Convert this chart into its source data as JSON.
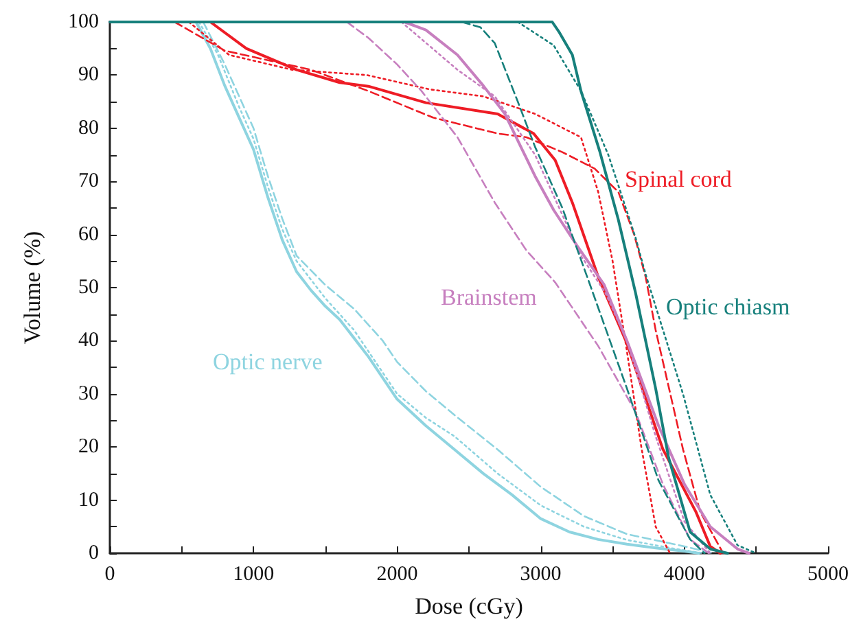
{
  "chart_data": {
    "type": "line",
    "xlabel": "Dose (cGy)",
    "ylabel": "Volume (%)",
    "xlim": [
      0,
      5000
    ],
    "ylim": [
      0,
      100
    ],
    "xticks": [
      0,
      {
        "value": 500,
        "label": null
      },
      1000,
      {
        "value": 1500,
        "label": null
      },
      2000,
      {
        "value": 2500,
        "label": null
      },
      3000,
      {
        "value": 3500,
        "label": null
      },
      4000,
      {
        "value": 4500,
        "label": null
      },
      5000
    ],
    "yticks": [
      0,
      {
        "value": 5,
        "label": null
      },
      10,
      {
        "value": 15,
        "label": null
      },
      20,
      {
        "value": 25,
        "label": null
      },
      30,
      {
        "value": 35,
        "label": null
      },
      40,
      {
        "value": 45,
        "label": null
      },
      50,
      {
        "value": 55,
        "label": null
      },
      60,
      {
        "value": 65,
        "label": null
      },
      70,
      {
        "value": 75,
        "label": null
      },
      80,
      {
        "value": 85,
        "label": null
      },
      90,
      {
        "value": 95,
        "label": null
      },
      100
    ],
    "grid": false,
    "marker": "none",
    "series": [
      {
        "color": "#8ed4e0",
        "line_style": "solid",
        "x": [
          0,
          600,
          700,
          800,
          900,
          1000,
          1100,
          1200,
          1300,
          1400,
          1500,
          1600,
          1800,
          2000,
          2200,
          2400,
          2600,
          2800,
          3000,
          3200,
          3400,
          3600,
          3800,
          4000,
          4100
        ],
        "values": [
          100,
          100,
          95,
          88,
          82,
          76,
          67,
          59,
          53,
          49.5,
          46.5,
          44,
          37,
          29,
          24,
          19.5,
          15,
          11,
          6.5,
          4,
          2.6,
          1.7,
          1,
          0.4,
          0
        ]
      },
      {
        "color": "#8ed4e0",
        "line_style": "dashed",
        "x": [
          650,
          800,
          900,
          1000,
          1100,
          1200,
          1300,
          1500,
          1700,
          1900,
          2000,
          2200,
          2400,
          2700,
          3000,
          3300,
          3600,
          4000,
          4200
        ],
        "values": [
          100,
          92,
          86,
          80,
          71,
          63,
          56,
          50.5,
          46,
          40,
          36,
          30.5,
          26,
          19.5,
          12.5,
          7,
          3.6,
          1.3,
          0
        ]
      },
      {
        "color": "#8ed4e0",
        "line_style": "dotted",
        "x": [
          620,
          750,
          900,
          1000,
          1100,
          1200,
          1300,
          1500,
          1700,
          2000,
          2200,
          2400,
          2700,
          3000,
          3300,
          3600,
          3900,
          4130
        ],
        "values": [
          100,
          94,
          84,
          78,
          69,
          61,
          55,
          48,
          42,
          30,
          25.5,
          22,
          15,
          9,
          5,
          2.5,
          1,
          0
        ]
      },
      {
        "color": "#ee1c25",
        "line_style": "solid",
        "x": [
          0,
          700,
          950,
          1300,
          1600,
          1800,
          2200,
          2700,
          2950,
          3100,
          3220,
          3400,
          3600,
          3850,
          4080,
          4180,
          4250
        ],
        "values": [
          100,
          100,
          95,
          91,
          88.6,
          87.9,
          84.8,
          82.7,
          79,
          74,
          66,
          52,
          39.5,
          19.6,
          7.8,
          1.3,
          0
        ]
      },
      {
        "color": "#ee1c25",
        "line_style": "dashed",
        "x": [
          450,
          800,
          1400,
          1800,
          2250,
          2700,
          2900,
          3150,
          3375,
          3540,
          3650,
          3730,
          3800,
          3990,
          4110,
          4270
        ],
        "values": [
          100,
          94.6,
          91,
          87,
          82,
          79,
          78.3,
          75.5,
          72.4,
          68,
          60,
          52,
          42,
          19.6,
          7.8,
          0
        ]
      },
      {
        "color": "#ee1c25",
        "line_style": "dotted",
        "x": [
          550,
          830,
          1270,
          1790,
          2230,
          2600,
          2960,
          3280,
          3400,
          3500,
          3600,
          3700,
          3800,
          3900
        ],
        "values": [
          100,
          93.8,
          91,
          90,
          87.3,
          86,
          82.7,
          78.3,
          68,
          55,
          38,
          20,
          5,
          0
        ]
      },
      {
        "color": "#c77fbf",
        "line_style": "solid",
        "x": [
          0,
          2050,
          2200,
          2420,
          2600,
          2750,
          2960,
          3090,
          3250,
          3440,
          3600,
          3820,
          4000,
          4180,
          4370,
          4450
        ],
        "values": [
          100,
          100,
          98.5,
          93.8,
          88,
          82.7,
          71,
          64.6,
          58,
          50.6,
          40,
          24,
          13,
          5,
          0.8,
          0
        ]
      },
      {
        "color": "#c77fbf",
        "line_style": "dashed",
        "x": [
          1650,
          1800,
          2000,
          2170,
          2420,
          2680,
          2900,
          3100,
          3400,
          3660,
          3850,
          4040,
          4170
        ],
        "values": [
          100,
          97,
          92,
          87,
          78.3,
          66,
          57,
          51,
          39,
          26.6,
          13,
          2.6,
          0
        ]
      },
      {
        "color": "#c77fbf",
        "line_style": "dotted",
        "x": [
          2030,
          2420,
          2680,
          2960,
          3280,
          3450,
          3600,
          3800,
          4000,
          4180
        ],
        "values": [
          100,
          91,
          86,
          75,
          56,
          49,
          40,
          22,
          6,
          0
        ]
      },
      {
        "color": "#17807c",
        "line_style": "solid",
        "x": [
          0,
          3080,
          3130,
          3220,
          3280,
          3410,
          3540,
          3660,
          3800,
          3890,
          4040,
          4180,
          4300
        ],
        "values": [
          100,
          100,
          98,
          93.8,
          87,
          75.7,
          62.8,
          49,
          31,
          18,
          4,
          0.8,
          0
        ]
      },
      {
        "color": "#17807c",
        "line_style": "dashed",
        "x": [
          2450,
          2580,
          2680,
          2840,
          2960,
          3150,
          3350,
          3600,
          3820,
          4040,
          4140
        ],
        "values": [
          100,
          99,
          96,
          85,
          76.5,
          65,
          50,
          31,
          13.7,
          2.6,
          0
        ]
      },
      {
        "color": "#17807c",
        "line_style": "dotted",
        "x": [
          2840,
          3090,
          3280,
          3470,
          3660,
          3730,
          3990,
          4180,
          4370,
          4500
        ],
        "values": [
          100,
          95.6,
          87,
          75,
          59.4,
          52.5,
          30,
          11,
          1.5,
          0
        ]
      }
    ],
    "annotations": [
      "Optic nerve",
      "Spinal cord",
      "Brainstem",
      "Optic chiasm"
    ]
  }
}
